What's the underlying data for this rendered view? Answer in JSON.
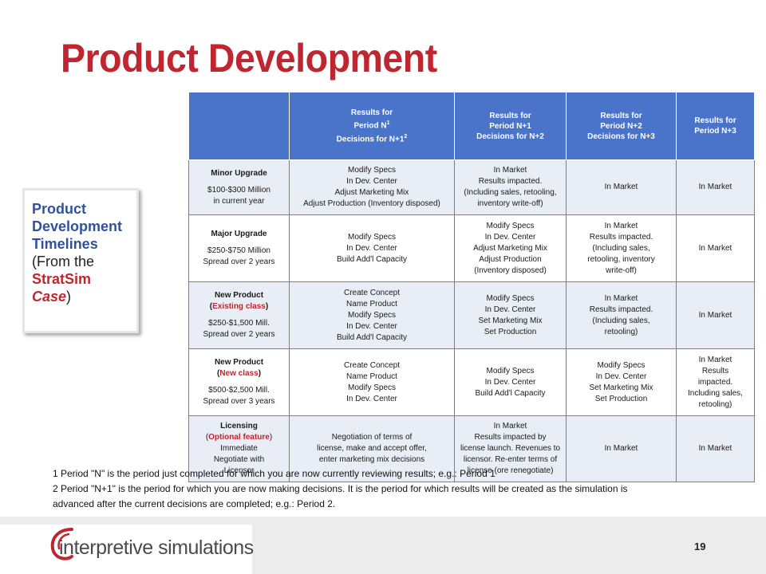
{
  "title": "Product Development",
  "sidebox": {
    "line1": "Product",
    "line2": "Development",
    "line3": "Timelines",
    "open": "(From the",
    "brand1": "StratSim",
    "brand2": "Case",
    "close": ")"
  },
  "table": {
    "headers": [
      {
        "l1": "Results for",
        "l2a": "Period N",
        "l2sup": "1",
        "l3a": "Decisions for N+1",
        "l3sup": "2"
      },
      {
        "l1": "Results for",
        "l2": "Period N+1",
        "l3": "Decisions for N+2"
      },
      {
        "l1": "Results for",
        "l2": "Period N+2",
        "l3": "Decisions for N+3"
      },
      {
        "l1": "Results for",
        "l2": "Period N+3"
      }
    ],
    "rows": [
      {
        "name": "Minor Upgrade",
        "cost": "$100-$300 Million",
        "timing": "in current year",
        "cells": [
          [
            "Modify Specs",
            "In Dev. Center",
            "Adjust Marketing Mix",
            "Adjust Production (Inventory disposed)"
          ],
          [
            "In Market",
            "Results impacted.",
            "(Including sales, retooling,",
            "inventory write-off)"
          ],
          [
            "In Market"
          ],
          [
            "In Market"
          ]
        ]
      },
      {
        "name": "Major Upgrade",
        "cost": "$250-$750 Million",
        "timing": "Spread over 2 years",
        "cells": [
          [
            "Modify Specs",
            "In Dev. Center",
            "Build Add'l Capacity"
          ],
          [
            "Modify Specs",
            "In Dev. Center",
            "Adjust Marketing Mix",
            "Adjust Production",
            "(Inventory disposed)"
          ],
          [
            "In Market",
            "Results impacted.",
            "(Including sales,",
            "retooling, inventory",
            "write-off)"
          ],
          [
            "In Market"
          ]
        ]
      },
      {
        "name": "New Product",
        "paren_open": "(",
        "qualifier": "Existing class",
        "paren_close": ")",
        "cost": "$250-$1,500 Mill.",
        "timing": "Spread over 2 years",
        "cells": [
          [
            "Create Concept",
            "Name Product",
            "Modify Specs",
            "In Dev. Center",
            "Build Add'l Capacity"
          ],
          [
            "Modify Specs",
            "In Dev. Center",
            "Set Marketing Mix",
            "Set Production"
          ],
          [
            "In Market",
            "Results impacted.",
            "(Including sales,",
            "retooling)"
          ],
          [
            "In Market"
          ]
        ]
      },
      {
        "name": "New Product",
        "paren_open": "(",
        "qualifier": "New class",
        "paren_close": ")",
        "cost": "$500-$2,500 Mill.",
        "timing": "Spread over 3 years",
        "cells": [
          [
            "Create Concept",
            "Name Product",
            "Modify Specs",
            "In Dev. Center"
          ],
          [
            "Modify Specs",
            "In Dev. Center",
            "Build Add'l Capacity"
          ],
          [
            "Modify Specs",
            "In Dev. Center",
            "Set Marketing Mix",
            "Set Production"
          ],
          [
            "In Market",
            "Results",
            "impacted.",
            "Including sales,",
            "retooling)"
          ]
        ]
      },
      {
        "name": "Licensing",
        "paren_open": "(",
        "qualifier": "Optional feature",
        "paren_close": ")",
        "extra": [
          "Immediate",
          "Negotiate with",
          "Licensor"
        ],
        "cells": [
          [
            "Negotiation of terms of",
            "license, make and accept offer,",
            "enter marketing mix decisions"
          ],
          [
            "In Market",
            "Results impacted by",
            "license launch. Revenues to",
            "licensor.  Re-enter terms of",
            "license  (ore renegotiate)"
          ],
          [
            "In Market"
          ],
          [
            "In Market"
          ]
        ]
      }
    ]
  },
  "footnotes": [
    "1 Period \"N\" is the period just completed for which you are now currently reviewing results; e.g.: Period 1",
    "2 Period \"N+1\" is the period for which you are now making decisions. It is the period for which results will be created as the simulation is",
    "advanced after the current decisions are completed; e.g.: Period 2."
  ],
  "logo": {
    "text": "interpretive simulations"
  },
  "page_number": "19",
  "colors": {
    "title_red": "#c0262f",
    "header_blue": "#4a74c9",
    "row_tint": "#e9edf6",
    "sidebox_blue": "#2f52a0"
  }
}
